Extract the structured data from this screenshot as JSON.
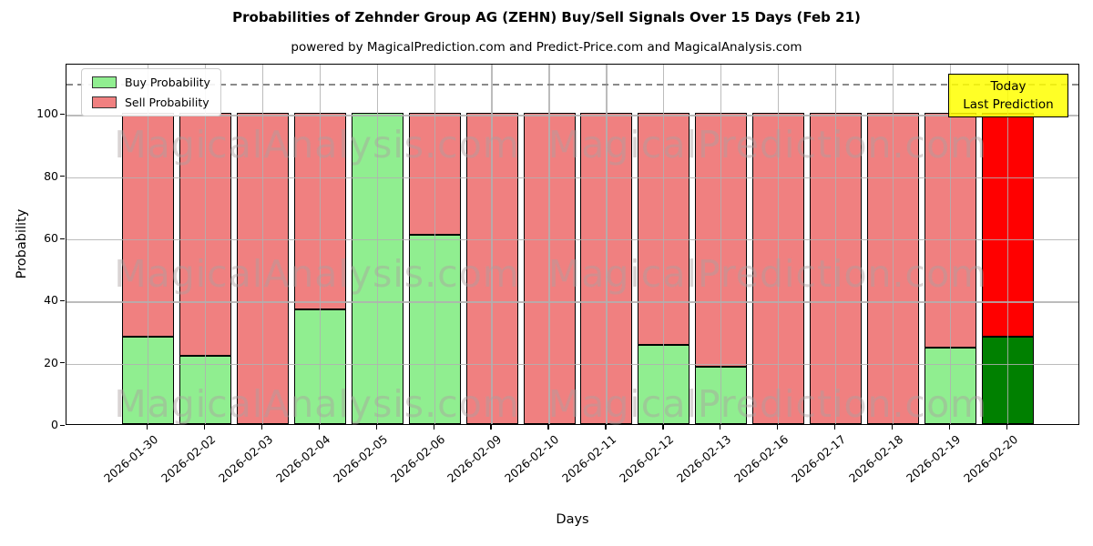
{
  "title": "Probabilities of Zehnder Group AG (ZEHN) Buy/Sell Signals Over 15 Days (Feb 21)",
  "subtitle": "powered by MagicalPrediction.com and Predict-Price.com and MagicalAnalysis.com",
  "legend": {
    "items": [
      {
        "label": "Buy Probability",
        "color": "#90EE90"
      },
      {
        "label": "Sell Probability",
        "color": "#F08080"
      }
    ]
  },
  "annotation_box": {
    "lines": [
      "Today",
      "Last Prediction"
    ],
    "bg_color": "#FFFF00"
  },
  "watermarks": {
    "left_text": "MagicalAnalysis.com",
    "right_text": "MagicalPrediction.com",
    "rows": 3
  },
  "colors": {
    "buy": "#90EE90",
    "sell": "#F08080",
    "buy_today": "#008000",
    "sell_today": "#FF0000",
    "bar_edge": "#000000",
    "grid": "#b0b0b0"
  },
  "chart_data": {
    "type": "bar",
    "stacked": true,
    "title": "Probabilities of Zehnder Group AG (ZEHN) Buy/Sell Signals Over 15 Days (Feb 21)",
    "xlabel": "Days",
    "ylabel": "Probability",
    "categories": [
      "2026-01-30",
      "2026-02-02",
      "2026-02-03",
      "2026-02-04",
      "2026-02-05",
      "2026-02-06",
      "2026-02-09",
      "2026-02-10",
      "2026-02-11",
      "2026-02-12",
      "2026-02-13",
      "2026-02-16",
      "2026-02-17",
      "2026-02-18",
      "2026-02-19",
      "2026-02-20"
    ],
    "series": [
      {
        "name": "Buy Probability",
        "values": [
          28,
          22,
          0,
          37,
          100,
          61,
          0,
          0,
          0,
          25.5,
          18.5,
          0,
          0,
          0,
          24.5,
          28
        ]
      },
      {
        "name": "Sell Probability",
        "values": [
          72,
          78,
          100,
          63,
          0,
          39,
          100,
          100,
          100,
          74.5,
          81.5,
          100,
          100,
          100,
          75.5,
          72
        ]
      }
    ],
    "highlight_last_bar": true,
    "yticks": [
      0,
      20,
      40,
      60,
      80,
      100
    ],
    "ylim": [
      0,
      116.2
    ],
    "dashed_line_y": 110,
    "grid": true,
    "legend_position": "upper left"
  }
}
